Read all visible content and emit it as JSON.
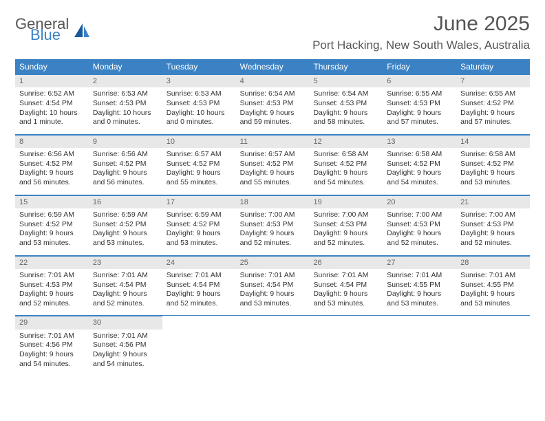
{
  "logo": {
    "text1": "General",
    "text2": "Blue"
  },
  "title": "June 2025",
  "location": "Port Hacking, New South Wales, Australia",
  "colors": {
    "header_bg": "#3b82c4",
    "daynum_bg": "#e8e8e8",
    "text": "#333333",
    "title_text": "#555555",
    "border": "#3b82c4"
  },
  "weekdays": [
    "Sunday",
    "Monday",
    "Tuesday",
    "Wednesday",
    "Thursday",
    "Friday",
    "Saturday"
  ],
  "weeks": [
    [
      {
        "num": "1",
        "sunrise": "Sunrise: 6:52 AM",
        "sunset": "Sunset: 4:54 PM",
        "day": "Daylight: 10 hours and 1 minute."
      },
      {
        "num": "2",
        "sunrise": "Sunrise: 6:53 AM",
        "sunset": "Sunset: 4:53 PM",
        "day": "Daylight: 10 hours and 0 minutes."
      },
      {
        "num": "3",
        "sunrise": "Sunrise: 6:53 AM",
        "sunset": "Sunset: 4:53 PM",
        "day": "Daylight: 10 hours and 0 minutes."
      },
      {
        "num": "4",
        "sunrise": "Sunrise: 6:54 AM",
        "sunset": "Sunset: 4:53 PM",
        "day": "Daylight: 9 hours and 59 minutes."
      },
      {
        "num": "5",
        "sunrise": "Sunrise: 6:54 AM",
        "sunset": "Sunset: 4:53 PM",
        "day": "Daylight: 9 hours and 58 minutes."
      },
      {
        "num": "6",
        "sunrise": "Sunrise: 6:55 AM",
        "sunset": "Sunset: 4:53 PM",
        "day": "Daylight: 9 hours and 57 minutes."
      },
      {
        "num": "7",
        "sunrise": "Sunrise: 6:55 AM",
        "sunset": "Sunset: 4:52 PM",
        "day": "Daylight: 9 hours and 57 minutes."
      }
    ],
    [
      {
        "num": "8",
        "sunrise": "Sunrise: 6:56 AM",
        "sunset": "Sunset: 4:52 PM",
        "day": "Daylight: 9 hours and 56 minutes."
      },
      {
        "num": "9",
        "sunrise": "Sunrise: 6:56 AM",
        "sunset": "Sunset: 4:52 PM",
        "day": "Daylight: 9 hours and 56 minutes."
      },
      {
        "num": "10",
        "sunrise": "Sunrise: 6:57 AM",
        "sunset": "Sunset: 4:52 PM",
        "day": "Daylight: 9 hours and 55 minutes."
      },
      {
        "num": "11",
        "sunrise": "Sunrise: 6:57 AM",
        "sunset": "Sunset: 4:52 PM",
        "day": "Daylight: 9 hours and 55 minutes."
      },
      {
        "num": "12",
        "sunrise": "Sunrise: 6:58 AM",
        "sunset": "Sunset: 4:52 PM",
        "day": "Daylight: 9 hours and 54 minutes."
      },
      {
        "num": "13",
        "sunrise": "Sunrise: 6:58 AM",
        "sunset": "Sunset: 4:52 PM",
        "day": "Daylight: 9 hours and 54 minutes."
      },
      {
        "num": "14",
        "sunrise": "Sunrise: 6:58 AM",
        "sunset": "Sunset: 4:52 PM",
        "day": "Daylight: 9 hours and 53 minutes."
      }
    ],
    [
      {
        "num": "15",
        "sunrise": "Sunrise: 6:59 AM",
        "sunset": "Sunset: 4:52 PM",
        "day": "Daylight: 9 hours and 53 minutes."
      },
      {
        "num": "16",
        "sunrise": "Sunrise: 6:59 AM",
        "sunset": "Sunset: 4:52 PM",
        "day": "Daylight: 9 hours and 53 minutes."
      },
      {
        "num": "17",
        "sunrise": "Sunrise: 6:59 AM",
        "sunset": "Sunset: 4:52 PM",
        "day": "Daylight: 9 hours and 53 minutes."
      },
      {
        "num": "18",
        "sunrise": "Sunrise: 7:00 AM",
        "sunset": "Sunset: 4:53 PM",
        "day": "Daylight: 9 hours and 52 minutes."
      },
      {
        "num": "19",
        "sunrise": "Sunrise: 7:00 AM",
        "sunset": "Sunset: 4:53 PM",
        "day": "Daylight: 9 hours and 52 minutes."
      },
      {
        "num": "20",
        "sunrise": "Sunrise: 7:00 AM",
        "sunset": "Sunset: 4:53 PM",
        "day": "Daylight: 9 hours and 52 minutes."
      },
      {
        "num": "21",
        "sunrise": "Sunrise: 7:00 AM",
        "sunset": "Sunset: 4:53 PM",
        "day": "Daylight: 9 hours and 52 minutes."
      }
    ],
    [
      {
        "num": "22",
        "sunrise": "Sunrise: 7:01 AM",
        "sunset": "Sunset: 4:53 PM",
        "day": "Daylight: 9 hours and 52 minutes."
      },
      {
        "num": "23",
        "sunrise": "Sunrise: 7:01 AM",
        "sunset": "Sunset: 4:54 PM",
        "day": "Daylight: 9 hours and 52 minutes."
      },
      {
        "num": "24",
        "sunrise": "Sunrise: 7:01 AM",
        "sunset": "Sunset: 4:54 PM",
        "day": "Daylight: 9 hours and 52 minutes."
      },
      {
        "num": "25",
        "sunrise": "Sunrise: 7:01 AM",
        "sunset": "Sunset: 4:54 PM",
        "day": "Daylight: 9 hours and 53 minutes."
      },
      {
        "num": "26",
        "sunrise": "Sunrise: 7:01 AM",
        "sunset": "Sunset: 4:54 PM",
        "day": "Daylight: 9 hours and 53 minutes."
      },
      {
        "num": "27",
        "sunrise": "Sunrise: 7:01 AM",
        "sunset": "Sunset: 4:55 PM",
        "day": "Daylight: 9 hours and 53 minutes."
      },
      {
        "num": "28",
        "sunrise": "Sunrise: 7:01 AM",
        "sunset": "Sunset: 4:55 PM",
        "day": "Daylight: 9 hours and 53 minutes."
      }
    ],
    [
      {
        "num": "29",
        "sunrise": "Sunrise: 7:01 AM",
        "sunset": "Sunset: 4:56 PM",
        "day": "Daylight: 9 hours and 54 minutes."
      },
      {
        "num": "30",
        "sunrise": "Sunrise: 7:01 AM",
        "sunset": "Sunset: 4:56 PM",
        "day": "Daylight: 9 hours and 54 minutes."
      },
      null,
      null,
      null,
      null,
      null
    ]
  ]
}
